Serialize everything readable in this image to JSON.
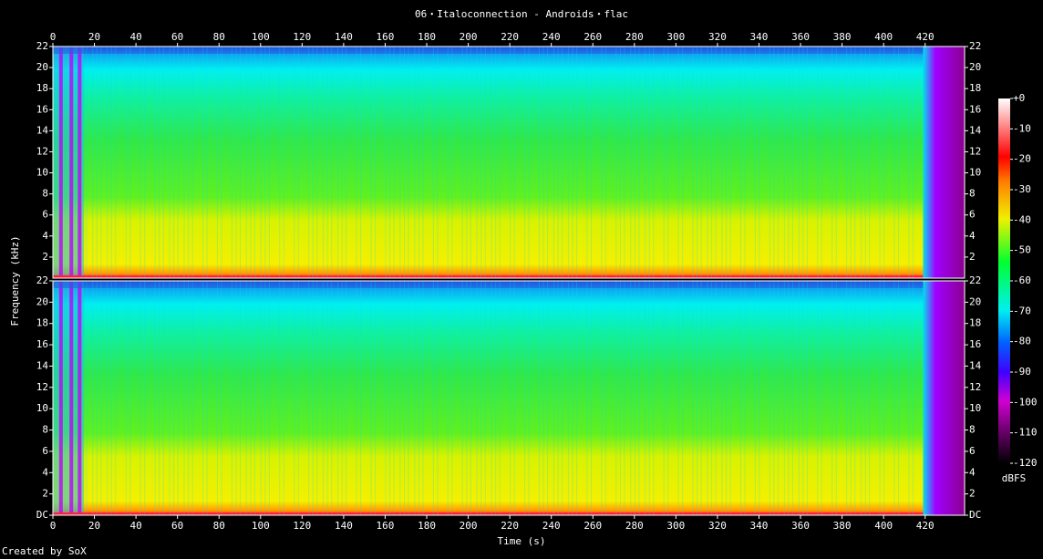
{
  "chart_data": {
    "type": "spectrogram",
    "title": "06・Italoconnection - Androids・flac",
    "xlabel": "Time (s)",
    "ylabel": "Frequency (kHz)",
    "xlim": [
      0,
      439
    ],
    "xticks": [
      0,
      20,
      40,
      60,
      80,
      100,
      120,
      140,
      160,
      180,
      200,
      220,
      240,
      260,
      280,
      300,
      320,
      340,
      360,
      380,
      400,
      420
    ],
    "ylim": [
      0,
      22
    ],
    "channels": [
      {
        "yticks": [
          2,
          4,
          6,
          8,
          10,
          12,
          14,
          16,
          18,
          20,
          22
        ]
      },
      {
        "yticks": [
          {
            "value": 0,
            "label": "DC"
          },
          2,
          4,
          6,
          8,
          10,
          12,
          14,
          16,
          18,
          20,
          22
        ]
      }
    ],
    "colorbar": {
      "label": "dBFS",
      "lim": [
        -120,
        0
      ],
      "ticks": [
        {
          "value": 0,
          "label": "+0"
        },
        -10,
        -20,
        -30,
        -40,
        -50,
        -60,
        -70,
        -80,
        -90,
        -100,
        -110,
        -120
      ]
    },
    "footer": "Created by SoX"
  }
}
